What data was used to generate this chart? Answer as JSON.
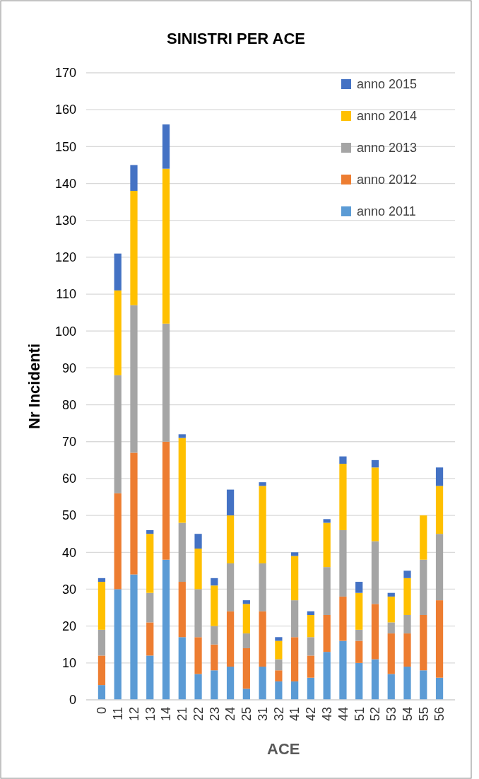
{
  "chart_data": {
    "type": "bar",
    "title": "SINISTRI PER ACE",
    "xlabel": "ACE",
    "ylabel": "Nr Incidenti",
    "stacked": true,
    "grid": "y",
    "legend": "top right",
    "categories": [
      "0",
      "11",
      "12",
      "13",
      "14",
      "21",
      "22",
      "23",
      "24",
      "25",
      "31",
      "32",
      "41",
      "42",
      "43",
      "44",
      "51",
      "52",
      "53",
      "54",
      "55",
      "56"
    ],
    "ylim": [
      0,
      170
    ],
    "yticks": [
      0,
      10,
      20,
      30,
      40,
      50,
      60,
      70,
      80,
      90,
      100,
      110,
      120,
      130,
      140,
      150,
      160,
      170
    ],
    "series": [
      {
        "name": "anno 2011",
        "color": "#5b9bd5",
        "values": [
          4,
          30,
          34,
          12,
          38,
          17,
          7,
          8,
          9,
          3,
          9,
          5,
          5,
          6,
          13,
          16,
          10,
          11,
          7,
          9,
          8,
          6
        ]
      },
      {
        "name": "anno 2012",
        "color": "#ed7d31",
        "values": [
          8,
          26,
          33,
          9,
          32,
          15,
          10,
          7,
          15,
          11,
          15,
          3,
          12,
          6,
          10,
          12,
          6,
          15,
          11,
          9,
          15,
          21
        ]
      },
      {
        "name": "anno 2013",
        "color": "#a5a5a5",
        "values": [
          7,
          32,
          40,
          8,
          32,
          16,
          13,
          5,
          13,
          4,
          13,
          3,
          10,
          5,
          13,
          18,
          3,
          17,
          3,
          5,
          15,
          18
        ]
      },
      {
        "name": "anno 2014",
        "color": "#ffc000",
        "values": [
          13,
          23,
          31,
          16,
          42,
          23,
          11,
          11,
          13,
          8,
          21,
          5,
          12,
          6,
          12,
          18,
          10,
          20,
          7,
          10,
          12,
          13
        ]
      },
      {
        "name": "anno 2015",
        "color": "#4472c4",
        "values": [
          1,
          10,
          7,
          1,
          12,
          1,
          4,
          2,
          7,
          1,
          1,
          1,
          1,
          1,
          1,
          2,
          3,
          2,
          1,
          2,
          0,
          5
        ]
      }
    ]
  }
}
